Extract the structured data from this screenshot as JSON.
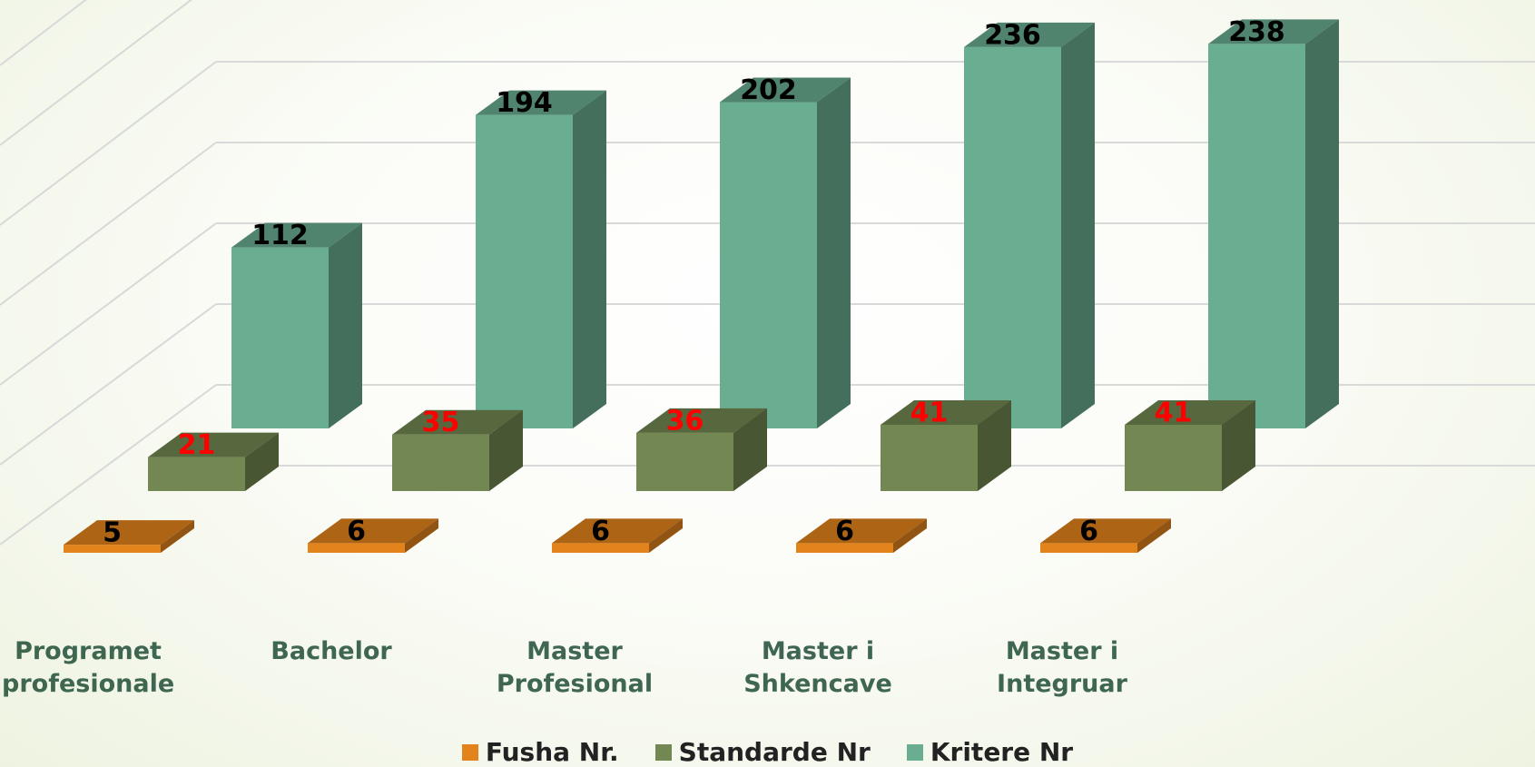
{
  "chart_data": {
    "type": "bar3d",
    "categories": [
      "Programet profesionale",
      "Bachelor",
      "Master Profesional",
      "Master i Shkencave",
      "Master i Integruar"
    ],
    "series": [
      {
        "name": "Fusha Nr.",
        "color": "#e3831c",
        "label_color": "#000000",
        "values": [
          5,
          6,
          6,
          6,
          6
        ]
      },
      {
        "name": "Standarde Nr",
        "color": "#728752",
        "label_color": "#ff0000",
        "values": [
          21,
          35,
          36,
          41,
          41
        ]
      },
      {
        "name": "Kritere Nr",
        "color": "#6aae92",
        "label_color": "#000000",
        "values": [
          112,
          194,
          202,
          236,
          238
        ]
      }
    ],
    "ylim": [
      0,
      250
    ],
    "yticks": [
      0,
      50,
      100,
      150,
      200,
      250
    ],
    "grid": true
  }
}
